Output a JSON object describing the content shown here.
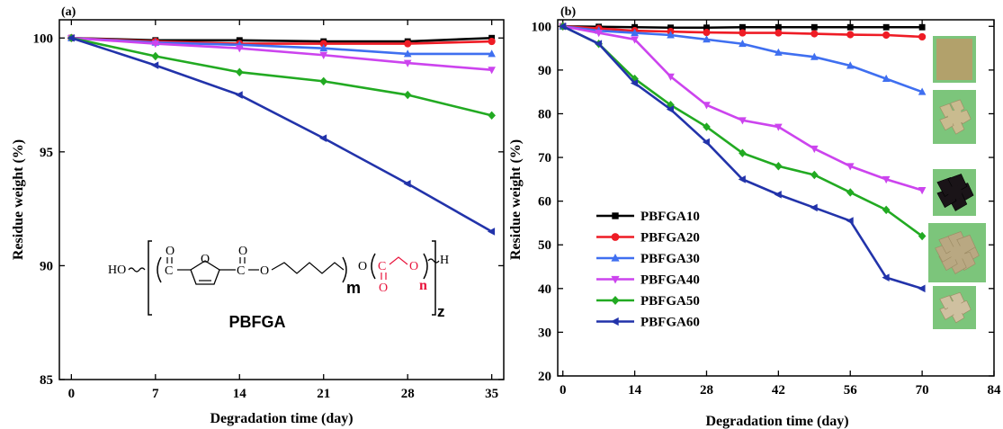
{
  "chart_data": [
    {
      "type": "line",
      "panel_label": "(a)",
      "xlabel": "Degradation time (day)",
      "ylabel": "Residue weight (%)",
      "xlim": [
        -1,
        36
      ],
      "ylim": [
        85,
        100.8
      ],
      "xticks": [
        0,
        7,
        14,
        21,
        28,
        35
      ],
      "yticks": [
        85,
        90,
        95,
        100
      ],
      "grid": false,
      "series": [
        {
          "color": "#000000",
          "marker": "square",
          "x": [
            0,
            7,
            14,
            21,
            28,
            35
          ],
          "y": [
            100,
            99.9,
            99.9,
            99.85,
            99.85,
            100
          ]
        },
        {
          "color": "#ee1c25",
          "marker": "circle",
          "x": [
            0,
            7,
            14,
            21,
            28,
            35
          ],
          "y": [
            100,
            99.85,
            99.75,
            99.75,
            99.75,
            99.85
          ]
        },
        {
          "color": "#3f6ff0",
          "marker": "triangle-up",
          "x": [
            0,
            7,
            14,
            21,
            28,
            35
          ],
          "y": [
            100,
            99.8,
            99.7,
            99.55,
            99.3,
            99.3
          ]
        },
        {
          "color": "#cc44ee",
          "marker": "triangle-down",
          "x": [
            0,
            7,
            14,
            21,
            28,
            35
          ],
          "y": [
            100,
            99.75,
            99.55,
            99.25,
            98.9,
            98.6
          ]
        },
        {
          "color": "#22aa22",
          "marker": "diamond",
          "x": [
            0,
            7,
            14,
            21,
            28,
            35
          ],
          "y": [
            100,
            99.2,
            98.5,
            98.1,
            97.5,
            96.6
          ]
        },
        {
          "color": "#2233aa",
          "marker": "triangle-left",
          "x": [
            0,
            7,
            14,
            21,
            28,
            35
          ],
          "y": [
            100,
            98.8,
            97.5,
            95.6,
            93.6,
            91.5
          ]
        }
      ],
      "structure": {
        "ho": "HO",
        "o": "O",
        "m": "m",
        "n": "n",
        "z": "z",
        "h": "H",
        "c": "C",
        "name": "PBFGA"
      }
    },
    {
      "type": "line",
      "panel_label": "(b)",
      "xlabel": "Degradation time (day)",
      "ylabel": "Residue weight (%)",
      "xlim": [
        -1,
        84
      ],
      "ylim": [
        20,
        101.5
      ],
      "xticks": [
        0,
        14,
        28,
        42,
        56,
        70,
        84
      ],
      "yticks": [
        20,
        30,
        40,
        50,
        60,
        70,
        80,
        90,
        100
      ],
      "grid": false,
      "legend_position": "lower-left",
      "series": [
        {
          "name": "PBFGA10",
          "color": "#000000",
          "marker": "square",
          "x": [
            0,
            7,
            14,
            21,
            28,
            35,
            42,
            49,
            56,
            63,
            70
          ],
          "y": [
            100,
            99.9,
            99.8,
            99.7,
            99.7,
            99.8,
            99.8,
            99.8,
            99.8,
            99.8,
            99.8
          ]
        },
        {
          "name": "PBFGA20",
          "color": "#ee1c25",
          "marker": "circle",
          "x": [
            0,
            7,
            14,
            21,
            28,
            35,
            42,
            49,
            56,
            63,
            70
          ],
          "y": [
            100,
            99.5,
            99,
            98.8,
            98.6,
            98.5,
            98.5,
            98.3,
            98.1,
            98,
            97.6
          ]
        },
        {
          "name": "PBFGA30",
          "color": "#3f6ff0",
          "marker": "triangle-up",
          "x": [
            0,
            7,
            14,
            21,
            28,
            35,
            42,
            49,
            56,
            63,
            70
          ],
          "y": [
            100,
            99,
            98.5,
            98,
            97,
            96,
            94,
            93,
            91,
            88,
            85
          ]
        },
        {
          "name": "PBFGA40",
          "color": "#cc44ee",
          "marker": "triangle-down",
          "x": [
            0,
            7,
            14,
            21,
            28,
            35,
            42,
            49,
            56,
            63,
            70
          ],
          "y": [
            100,
            98.5,
            97,
            88.5,
            82,
            78.5,
            77,
            72,
            68,
            65,
            62.5
          ]
        },
        {
          "name": "PBFGA50",
          "color": "#22aa22",
          "marker": "diamond",
          "x": [
            0,
            7,
            14,
            21,
            28,
            35,
            42,
            49,
            56,
            63,
            70
          ],
          "y": [
            100,
            96,
            88,
            82,
            77,
            71,
            68,
            66,
            62,
            58,
            52
          ]
        },
        {
          "name": "PBFGA60",
          "color": "#2233aa",
          "marker": "triangle-left",
          "x": [
            0,
            7,
            14,
            21,
            28,
            35,
            42,
            49,
            56,
            63,
            70
          ],
          "y": [
            100,
            96,
            87,
            81,
            73.5,
            65,
            61.5,
            58.5,
            55.5,
            42.5,
            40
          ]
        }
      ],
      "photo_colors": [
        "#b2a16b",
        "#c9bb8f",
        "#1a1418",
        "#b9a882",
        "#cfc0a0"
      ],
      "photo_background": "#7cc57b"
    }
  ]
}
